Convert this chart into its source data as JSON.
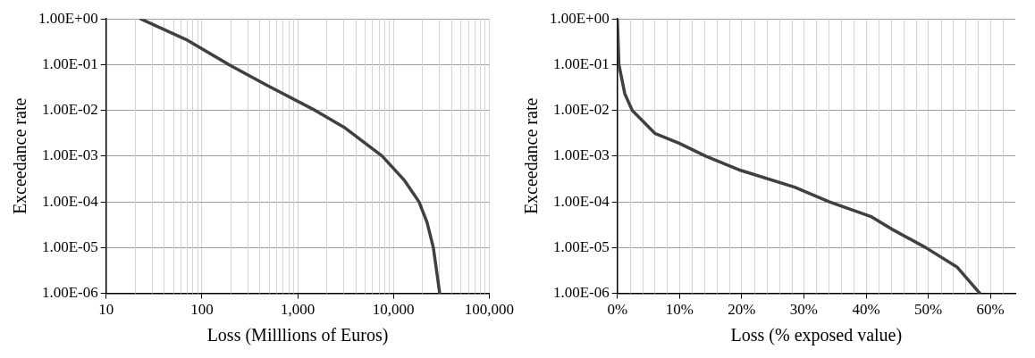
{
  "chart_data": [
    {
      "type": "line",
      "xlabel": "Loss (Milllions of Euros)",
      "ylabel": "Exceedance rate",
      "log": "xy",
      "grid": true,
      "legend": false,
      "marker": "none",
      "line_style": "solid",
      "xlim": [
        10,
        100000
      ],
      "xticks": [
        10,
        100,
        {
          "value": 1000,
          "label": "1,000"
        },
        {
          "value": 10000,
          "label": "10,000"
        },
        {
          "value": 100000,
          "label": "100,000"
        }
      ],
      "ylim": [
        1e-06,
        1
      ],
      "yticks": [
        {
          "value": 1e-06,
          "label": "1.00E-06"
        },
        {
          "value": 1e-05,
          "label": "1.00E-05"
        },
        {
          "value": 0.0001,
          "label": "1.00E-04"
        },
        {
          "value": 0.001,
          "label": "1.00E-03"
        },
        {
          "value": 0.01,
          "label": "1.00E-02"
        },
        {
          "value": 0.1,
          "label": "1.00E-01"
        },
        {
          "value": 1,
          "label": "1.00E+00"
        }
      ],
      "series": [
        {
          "color": "#404040",
          "x": [
            23,
            71,
            192,
            482,
            1525,
            3040,
            7640,
            13100,
            18500,
            22400,
            26100,
            30400
          ],
          "values": [
            1,
            0.34,
            0.1,
            0.035,
            0.01,
            0.0043,
            0.001,
            0.00029,
            0.0001,
            3.6e-05,
            1e-05,
            1e-06
          ]
        }
      ]
    },
    {
      "type": "line",
      "xlabel": "Loss (% exposed value)",
      "ylabel": "Exceedance rate",
      "log": "y",
      "grid": true,
      "legend": false,
      "marker": "none",
      "line_style": "solid",
      "xlim": [
        0,
        64
      ],
      "xticks": [
        {
          "value": 0,
          "label": "0%"
        },
        {
          "value": 10,
          "label": "10%"
        },
        {
          "value": 20,
          "label": "20%"
        },
        {
          "value": 30,
          "label": "30%"
        },
        {
          "value": 40,
          "label": "40%"
        },
        {
          "value": 50,
          "label": "50%"
        },
        {
          "value": 60,
          "label": "60%"
        }
      ],
      "ylim": [
        1e-06,
        1
      ],
      "yticks": [
        {
          "value": 1e-06,
          "label": "1.00E-06"
        },
        {
          "value": 1e-05,
          "label": "1.00E-05"
        },
        {
          "value": 0.0001,
          "label": "1.00E-04"
        },
        {
          "value": 0.001,
          "label": "1.00E-03"
        },
        {
          "value": 0.01,
          "label": "1.00E-02"
        },
        {
          "value": 0.1,
          "label": "1.00E-01"
        },
        {
          "value": 1,
          "label": "1.00E+00"
        }
      ],
      "series": [
        {
          "color": "#404040",
          "x": [
            0,
            0.25,
            1.2,
            2.4,
            6.1,
            10,
            14.2,
            19.8,
            28.5,
            34.1,
            40.9,
            44,
            49.6,
            54.6,
            58.3
          ],
          "values": [
            1,
            0.1,
            0.023,
            0.01,
            0.0031,
            0.0019,
            0.001,
            0.00049,
            0.00021,
            0.0001,
            4.7e-05,
            2.6e-05,
            1e-05,
            3.8e-06,
            1e-06
          ]
        }
      ]
    }
  ]
}
